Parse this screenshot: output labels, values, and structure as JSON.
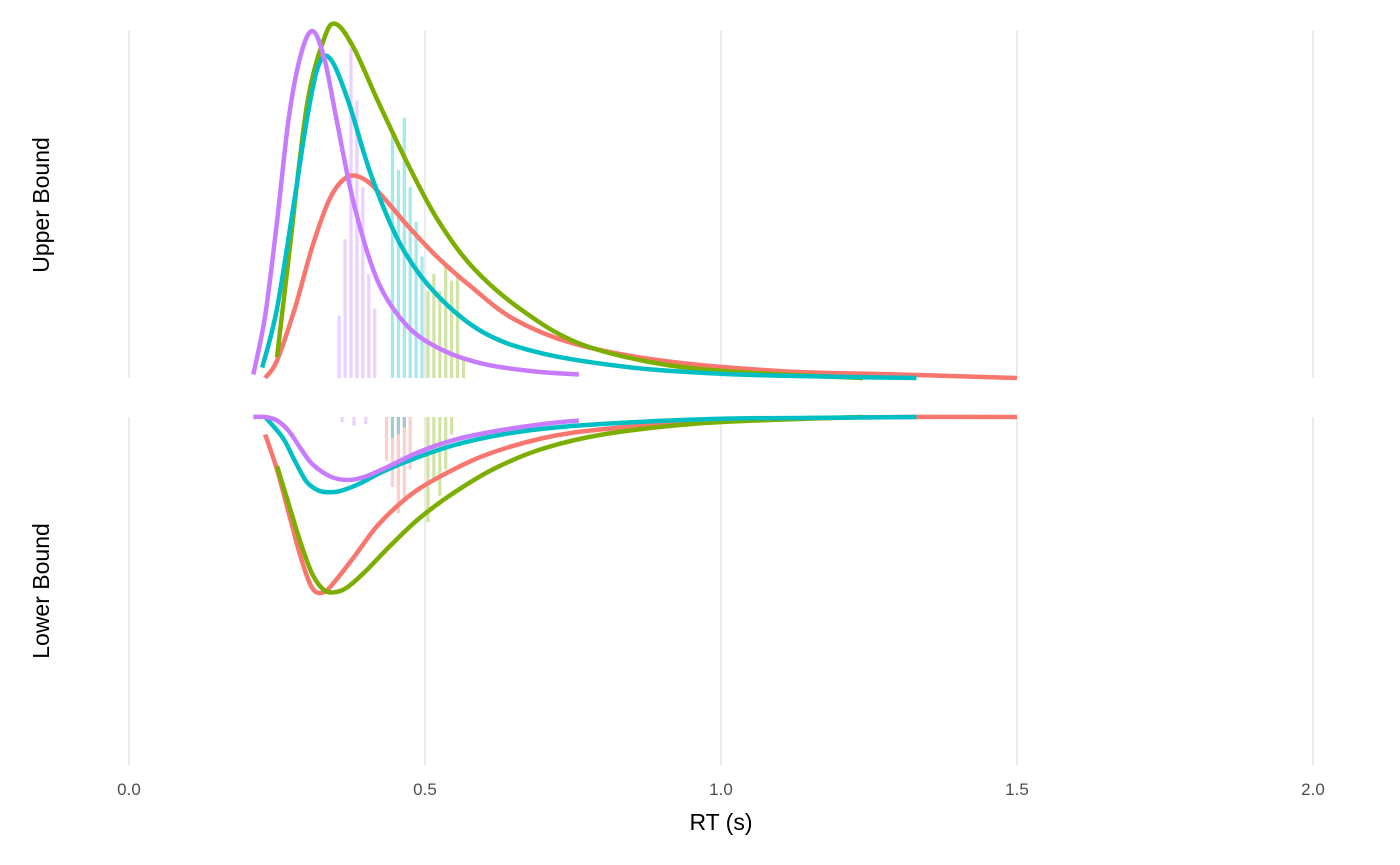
{
  "chart_data": {
    "type": "line",
    "xlabel": "RT (s)",
    "ylabel": "",
    "xlim": [
      -0.05,
      2.07
    ],
    "x_ticks": [
      "0.0",
      "0.5",
      "1.0",
      "1.5",
      "2.0"
    ],
    "x_tick_values": [
      0,
      0.5,
      1.0,
      1.5,
      2.0
    ],
    "grid": "vertical major gridlines only",
    "legend": "none",
    "panels": [
      {
        "label": "Upper Bound",
        "direction": "up"
      },
      {
        "label": "Lower Bound",
        "direction": "down"
      }
    ],
    "series": [
      {
        "color": "#F8766D",
        "upper_density": {
          "x": [
            0.23,
            0.25,
            0.28,
            0.31,
            0.34,
            0.37,
            0.4,
            0.43,
            0.47,
            0.52,
            0.58,
            0.65,
            0.75,
            0.9,
            1.1,
            1.3,
            1.5
          ],
          "y": [
            0.0,
            0.05,
            0.2,
            0.38,
            0.52,
            0.58,
            0.57,
            0.52,
            0.44,
            0.35,
            0.26,
            0.17,
            0.1,
            0.05,
            0.02,
            0.01,
            0.0
          ]
        },
        "lower_density": {
          "x": [
            0.23,
            0.25,
            0.27,
            0.29,
            0.31,
            0.33,
            0.35,
            0.38,
            0.42,
            0.47,
            0.52,
            0.6,
            0.7,
            0.8,
            0.95,
            1.1,
            1.3,
            1.5
          ],
          "y": [
            0.1,
            0.3,
            0.55,
            0.8,
            0.98,
            1.0,
            0.93,
            0.8,
            0.62,
            0.46,
            0.35,
            0.22,
            0.12,
            0.07,
            0.03,
            0.01,
            0.0,
            0.0
          ]
        },
        "upper_hist": {
          "x": [],
          "h": []
        },
        "lower_hist": {
          "x": [
            0.435,
            0.445,
            0.455,
            0.465,
            0.475
          ],
          "h": [
            0.25,
            0.4,
            0.55,
            0.48,
            0.3
          ]
        }
      },
      {
        "color": "#7CAE00",
        "upper_density": {
          "x": [
            0.25,
            0.27,
            0.3,
            0.33,
            0.35,
            0.38,
            0.42,
            0.47,
            0.52,
            0.58,
            0.66,
            0.76,
            0.9,
            1.05,
            1.24
          ],
          "y": [
            0.06,
            0.35,
            0.78,
            0.98,
            1.02,
            0.95,
            0.8,
            0.62,
            0.46,
            0.32,
            0.2,
            0.1,
            0.04,
            0.015,
            0.0
          ]
        },
        "lower_density": {
          "x": [
            0.25,
            0.27,
            0.29,
            0.31,
            0.33,
            0.35,
            0.37,
            0.4,
            0.44,
            0.49,
            0.55,
            0.62,
            0.7,
            0.8,
            0.95,
            1.1,
            1.24
          ],
          "y": [
            0.28,
            0.5,
            0.72,
            0.9,
            0.99,
            1.0,
            0.97,
            0.88,
            0.74,
            0.58,
            0.43,
            0.29,
            0.18,
            0.1,
            0.04,
            0.015,
            0.0
          ]
        },
        "upper_hist": {
          "x": [
            0.505,
            0.515,
            0.525,
            0.535,
            0.545,
            0.555,
            0.565
          ],
          "h": [
            0.25,
            0.3,
            0.25,
            0.32,
            0.28,
            0.3,
            0.06
          ]
        },
        "lower_hist": {
          "x": [
            0.505,
            0.515,
            0.525,
            0.535,
            0.545
          ],
          "h": [
            0.6,
            0.35,
            0.45,
            0.3,
            0.1
          ]
        }
      },
      {
        "color": "#00BFC4",
        "upper_density": {
          "x": [
            0.225,
            0.25,
            0.28,
            0.3,
            0.32,
            0.34,
            0.37,
            0.41,
            0.46,
            0.52,
            0.6,
            0.7,
            0.85,
            1.0,
            1.15,
            1.33
          ],
          "y": [
            0.03,
            0.2,
            0.52,
            0.74,
            0.9,
            0.92,
            0.8,
            0.58,
            0.38,
            0.24,
            0.13,
            0.07,
            0.03,
            0.012,
            0.005,
            0.0
          ]
        },
        "lower_density": {
          "x": [
            0.23,
            0.26,
            0.28,
            0.3,
            0.32,
            0.34,
            0.36,
            0.39,
            0.43,
            0.48,
            0.55,
            0.63,
            0.72,
            0.85,
            1.0,
            1.15,
            1.33
          ],
          "y": [
            0.0,
            0.12,
            0.25,
            0.37,
            0.42,
            0.43,
            0.42,
            0.38,
            0.31,
            0.24,
            0.16,
            0.1,
            0.06,
            0.03,
            0.01,
            0.005,
            0.0
          ]
        },
        "upper_hist": {
          "x": [
            0.445,
            0.455,
            0.465,
            0.475,
            0.485,
            0.495
          ],
          "h": [
            0.7,
            0.6,
            0.75,
            0.55,
            0.45,
            0.35
          ]
        },
        "lower_hist": {
          "x": [
            0.445,
            0.455,
            0.465
          ],
          "h": [
            0.12,
            0.1,
            0.06
          ]
        }
      },
      {
        "color": "#C77CFF",
        "upper_density": {
          "x": [
            0.21,
            0.23,
            0.25,
            0.27,
            0.29,
            0.31,
            0.33,
            0.35,
            0.38,
            0.42,
            0.47,
            0.53,
            0.6,
            0.68,
            0.76
          ],
          "y": [
            0.01,
            0.18,
            0.45,
            0.75,
            0.93,
            1.0,
            0.92,
            0.75,
            0.5,
            0.28,
            0.15,
            0.08,
            0.04,
            0.02,
            0.01
          ]
        },
        "lower_density": {
          "x": [
            0.21,
            0.23,
            0.25,
            0.27,
            0.29,
            0.31,
            0.34,
            0.37,
            0.4,
            0.44,
            0.49,
            0.55,
            0.62,
            0.7,
            0.76
          ],
          "y": [
            0.0,
            0.0,
            0.02,
            0.08,
            0.18,
            0.27,
            0.34,
            0.36,
            0.34,
            0.28,
            0.2,
            0.13,
            0.08,
            0.04,
            0.02
          ]
        },
        "upper_hist": {
          "x": [
            0.355,
            0.365,
            0.375,
            0.385,
            0.395,
            0.405,
            0.415
          ],
          "h": [
            0.18,
            0.4,
            0.95,
            0.8,
            0.55,
            0.3,
            0.2
          ]
        },
        "lower_hist": {
          "x": [
            0.36,
            0.38,
            0.4
          ],
          "h": [
            0.03,
            0.05,
            0.04
          ]
        }
      }
    ]
  }
}
